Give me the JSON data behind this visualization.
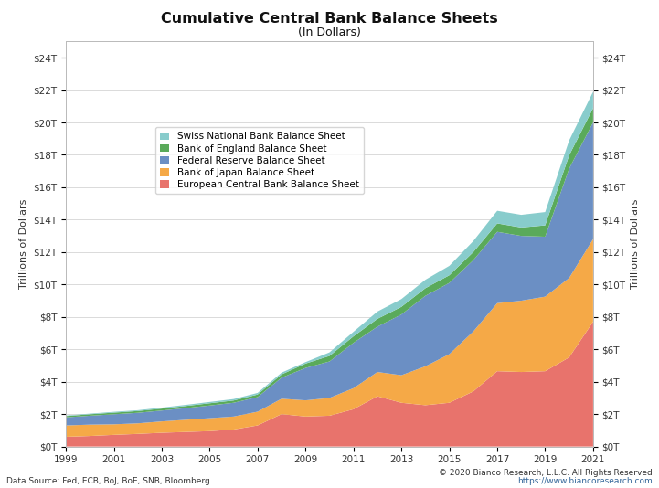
{
  "title": "Cumulative Central Bank Balance Sheets",
  "subtitle": "(In Dollars)",
  "ylabel": "Trillions of Dollars",
  "data_source": "Data Source: Fed, ECB, BoJ, BoE, SNB, Bloomberg",
  "copyright": "© 2020 Bianco Research, L.L.C. All Rights Reserved",
  "website": "https://www.biancoresearch.com",
  "ylim": [
    0,
    25
  ],
  "yticks": [
    0,
    2,
    4,
    6,
    8,
    10,
    12,
    14,
    16,
    18,
    20,
    22,
    24
  ],
  "ytick_labels": [
    "$0T",
    "$2T",
    "$4T",
    "$6T",
    "$8T",
    "$10T",
    "$12T",
    "$14T",
    "$16T",
    "$18T",
    "$20T",
    "$22T",
    "$24T"
  ],
  "colors": {
    "ecb": "#e8736c",
    "boj": "#f5a947",
    "fed": "#6b8fc4",
    "boe": "#5aaa5a",
    "snb": "#88cccc"
  },
  "labels": {
    "snb": "Swiss National Bank Balance Sheet",
    "boe": "Bank of England Balance Sheet",
    "fed": "Federal Reserve Balance Sheet",
    "boj": "Bank of Japan Balance Sheet",
    "ecb": "European Central Bank Balance Sheet"
  },
  "background_color": "#ffffff",
  "years": [
    1999,
    2000,
    2001,
    2002,
    2003,
    2004,
    2005,
    2006,
    2007,
    2008,
    2009,
    2010,
    2011,
    2012,
    2013,
    2014,
    2015,
    2016,
    2017,
    2018,
    2019,
    2020,
    2021
  ],
  "ecb": [
    0.6,
    0.65,
    0.72,
    0.78,
    0.85,
    0.9,
    0.95,
    1.05,
    1.3,
    2.0,
    1.85,
    1.9,
    2.3,
    3.1,
    2.7,
    2.55,
    2.7,
    3.4,
    4.65,
    4.6,
    4.65,
    5.5,
    7.7
  ],
  "boj": [
    0.7,
    0.7,
    0.65,
    0.65,
    0.7,
    0.75,
    0.8,
    0.8,
    0.85,
    0.95,
    1.0,
    1.1,
    1.3,
    1.5,
    1.7,
    2.4,
    3.0,
    3.7,
    4.2,
    4.4,
    4.6,
    4.9,
    5.1
  ],
  "fed": [
    0.5,
    0.55,
    0.62,
    0.65,
    0.67,
    0.72,
    0.78,
    0.85,
    0.9,
    1.3,
    2.0,
    2.25,
    2.8,
    2.8,
    3.75,
    4.35,
    4.4,
    4.4,
    4.4,
    4.0,
    3.7,
    6.75,
    7.2
  ],
  "boe": [
    0.08,
    0.09,
    0.1,
    0.11,
    0.12,
    0.13,
    0.14,
    0.14,
    0.16,
    0.2,
    0.27,
    0.34,
    0.4,
    0.48,
    0.47,
    0.47,
    0.47,
    0.5,
    0.52,
    0.52,
    0.7,
    0.82,
    0.88
  ],
  "snb": [
    0.03,
    0.04,
    0.05,
    0.05,
    0.06,
    0.07,
    0.08,
    0.09,
    0.1,
    0.11,
    0.09,
    0.22,
    0.28,
    0.45,
    0.48,
    0.52,
    0.58,
    0.68,
    0.78,
    0.78,
    0.82,
    0.92,
    1.02
  ]
}
